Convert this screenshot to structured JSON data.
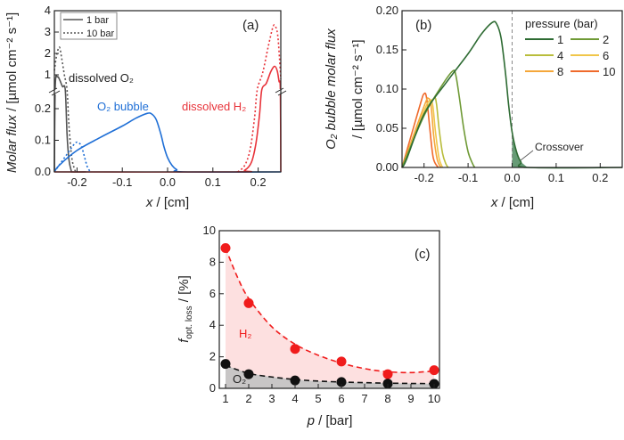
{
  "chart_data": [
    {
      "type": "line",
      "panel_label": "(a)",
      "xlabel": {
        "italic": "x",
        "rest": " / [cm]"
      },
      "ylabel": {
        "italic": "Molar flux",
        "rest": " / [µmol cm⁻² s⁻¹]"
      },
      "xlim": [
        -0.25,
        0.25
      ],
      "xticks": [
        "-0.2",
        "-0.1",
        "0.0",
        "0.1",
        "0.2"
      ],
      "xtick_values": [
        -0.2,
        -0.1,
        0.0,
        0.1,
        0.2
      ],
      "ylim_lower": [
        0,
        0.26
      ],
      "ylim_upper": [
        0.26,
        4
      ],
      "yticks": [
        "0.0",
        "0.1",
        "0.2",
        "1",
        "2",
        "3",
        "4"
      ],
      "ytick_values": [
        0,
        0.1,
        0.2,
        1,
        2,
        3,
        4
      ],
      "axis_break": true,
      "legend": {
        "position": "top-left",
        "entries": [
          {
            "label": "1 bar",
            "style": "solid"
          },
          {
            "label": "10 bar",
            "style": "dotted"
          }
        ]
      },
      "annotations": {
        "dissolved_o2": "dissolved O₂",
        "o2_bubble": "O₂ bubble",
        "dissolved_h2": "dissolved H₂"
      },
      "series": [
        {
          "name": "dissolved O2, 1 bar",
          "color": "#555555",
          "style": "solid",
          "points": [
            [
              -0.25,
              0
            ],
            [
              -0.248,
              0.5
            ],
            [
              -0.243,
              0.9
            ],
            [
              -0.238,
              0.75
            ],
            [
              -0.232,
              0.45
            ],
            [
              -0.226,
              0.26
            ],
            [
              -0.222,
              0.12
            ],
            [
              -0.218,
              0.04
            ],
            [
              -0.213,
              0.005
            ],
            [
              -0.21,
              0
            ],
            [
              -0.18,
              0
            ]
          ]
        },
        {
          "name": "dissolved O2, 10 bar",
          "color": "#555555",
          "style": "dotted",
          "points": [
            [
              -0.25,
              1.2
            ],
            [
              -0.245,
              1.9
            ],
            [
              -0.239,
              2.3
            ],
            [
              -0.234,
              1.8
            ],
            [
              -0.228,
              1.0
            ],
            [
              -0.222,
              0.3
            ],
            [
              -0.218,
              0.15
            ],
            [
              -0.212,
              0.05
            ],
            [
              -0.206,
              0.01
            ],
            [
              -0.202,
              0
            ]
          ]
        },
        {
          "name": "O2 bubble, 1 bar",
          "color": "#1f6fd6",
          "style": "solid",
          "points": [
            [
              -0.25,
              0
            ],
            [
              -0.24,
              0.02
            ],
            [
              -0.2,
              0.068
            ],
            [
              -0.15,
              0.108
            ],
            [
              -0.1,
              0.145
            ],
            [
              -0.07,
              0.17
            ],
            [
              -0.045,
              0.185
            ],
            [
              -0.035,
              0.183
            ],
            [
              -0.025,
              0.165
            ],
            [
              -0.015,
              0.12
            ],
            [
              -0.008,
              0.08
            ],
            [
              0,
              0.045
            ],
            [
              0.01,
              0.02
            ],
            [
              0.02,
              0.007
            ],
            [
              0.035,
              0
            ],
            [
              0.25,
              0
            ]
          ]
        },
        {
          "name": "O2 bubble, 10 bar",
          "color": "#1f6fd6",
          "style": "dotted",
          "points": [
            [
              -0.25,
              0
            ],
            [
              -0.235,
              0.03
            ],
            [
              -0.22,
              0.06
            ],
            [
              -0.205,
              0.09
            ],
            [
              -0.197,
              0.093
            ],
            [
              -0.19,
              0.08
            ],
            [
              -0.183,
              0.045
            ],
            [
              -0.177,
              0.015
            ],
            [
              -0.17,
              0
            ]
          ]
        },
        {
          "name": "dissolved H2, 1 bar",
          "color": "#e8333a",
          "style": "solid",
          "points": [
            [
              -0.25,
              0
            ],
            [
              0.15,
              0
            ],
            [
              0.17,
              0.005
            ],
            [
              0.185,
              0.03
            ],
            [
              0.195,
              0.09
            ],
            [
              0.203,
              0.18
            ],
            [
              0.208,
              0.26
            ],
            [
              0.218,
              0.6
            ],
            [
              0.228,
              1.15
            ],
            [
              0.236,
              1.4
            ],
            [
              0.242,
              1.2
            ],
            [
              0.246,
              0.7
            ],
            [
              0.249,
              0.3
            ],
            [
              0.25,
              0
            ]
          ]
        },
        {
          "name": "dissolved H2, 10 bar",
          "color": "#e8333a",
          "style": "dotted",
          "points": [
            [
              0.155,
              0
            ],
            [
              0.17,
              0.02
            ],
            [
              0.182,
              0.07
            ],
            [
              0.192,
              0.17
            ],
            [
              0.198,
              0.26
            ],
            [
              0.21,
              1.1
            ],
            [
              0.222,
              2.3
            ],
            [
              0.232,
              3.2
            ],
            [
              0.237,
              3.3
            ],
            [
              0.243,
              2.9
            ],
            [
              0.247,
              1.8
            ],
            [
              0.25,
              0.8
            ]
          ]
        }
      ]
    },
    {
      "type": "line",
      "panel_label": "(b)",
      "xlabel": {
        "italic": "x",
        "rest": " / [cm]"
      },
      "ylabel": {
        "line1": "O₂ bubble molar flux",
        "line2": "/ [µmol cm⁻² s⁻¹]"
      },
      "xlim": [
        -0.25,
        0.25
      ],
      "ylim": [
        0,
        0.2
      ],
      "xticks": [
        "-0.2",
        "-0.1",
        "0.0",
        "0.1",
        "0.2"
      ],
      "xtick_values": [
        -0.2,
        -0.1,
        0.0,
        0.1,
        0.2
      ],
      "yticks": [
        "0.00",
        "0.05",
        "0.10",
        "0.15",
        "0.20"
      ],
      "ytick_values": [
        0,
        0.05,
        0.1,
        0.15,
        0.2
      ],
      "legend": {
        "title": "pressure (bar)",
        "position": "top-right"
      },
      "annotation": "Crossover",
      "crossover_fill": "#4c8a5e",
      "series": [
        {
          "name": "1",
          "color": "#2e6b33",
          "points": [
            [
              -0.25,
              0
            ],
            [
              -0.24,
              0.01
            ],
            [
              -0.2,
              0.068
            ],
            [
              -0.15,
              0.108
            ],
            [
              -0.1,
              0.145
            ],
            [
              -0.07,
              0.17
            ],
            [
              -0.045,
              0.185
            ],
            [
              -0.035,
              0.183
            ],
            [
              -0.025,
              0.165
            ],
            [
              -0.015,
              0.12
            ],
            [
              -0.008,
              0.08
            ],
            [
              0,
              0.045
            ],
            [
              0.01,
              0.02
            ],
            [
              0.02,
              0.007
            ],
            [
              0.035,
              0
            ],
            [
              0.25,
              0
            ]
          ]
        },
        {
          "name": "2",
          "color": "#6f9a36",
          "points": [
            [
              -0.25,
              0
            ],
            [
              -0.2,
              0.066
            ],
            [
              -0.16,
              0.104
            ],
            [
              -0.135,
              0.123
            ],
            [
              -0.128,
              0.118
            ],
            [
              -0.12,
              0.09
            ],
            [
              -0.11,
              0.05
            ],
            [
              -0.1,
              0.02
            ],
            [
              -0.09,
              0.005
            ],
            [
              -0.085,
              0
            ]
          ]
        },
        {
          "name": "4",
          "color": "#b9bd3c",
          "points": [
            [
              -0.25,
              0
            ],
            [
              -0.2,
              0.068
            ],
            [
              -0.178,
              0.088
            ],
            [
              -0.172,
              0.082
            ],
            [
              -0.166,
              0.05
            ],
            [
              -0.158,
              0.018
            ],
            [
              -0.15,
              0.004
            ],
            [
              -0.145,
              0
            ]
          ]
        },
        {
          "name": "6",
          "color": "#f0c64a",
          "points": [
            [
              -0.25,
              0
            ],
            [
              -0.2,
              0.072
            ],
            [
              -0.186,
              0.086
            ],
            [
              -0.18,
              0.078
            ],
            [
              -0.174,
              0.045
            ],
            [
              -0.166,
              0.012
            ],
            [
              -0.158,
              0
            ]
          ]
        },
        {
          "name": "8",
          "color": "#f5a73a",
          "points": [
            [
              -0.25,
              0
            ],
            [
              -0.2,
              0.078
            ],
            [
              -0.19,
              0.088
            ],
            [
              -0.184,
              0.078
            ],
            [
              -0.178,
              0.04
            ],
            [
              -0.17,
              0.01
            ],
            [
              -0.162,
              0
            ]
          ]
        },
        {
          "name": "10",
          "color": "#ef6a2c",
          "points": [
            [
              -0.25,
              0
            ],
            [
              -0.21,
              0.078
            ],
            [
              -0.2,
              0.094
            ],
            [
              -0.194,
              0.088
            ],
            [
              -0.187,
              0.05
            ],
            [
              -0.179,
              0.012
            ],
            [
              -0.168,
              0
            ]
          ]
        }
      ]
    },
    {
      "type": "scatter",
      "panel_label": "(c)",
      "xlabel": {
        "italic": "p",
        "rest": " / [bar]"
      },
      "ylabel": {
        "italic": "f",
        "sub": "opt. loss",
        "rest": " / [%]"
      },
      "xlim": [
        0.75,
        10.25
      ],
      "ylim": [
        0,
        10
      ],
      "xticks": [
        "1",
        "2",
        "3",
        "4",
        "5",
        "6",
        "7",
        "8",
        "9",
        "10"
      ],
      "xtick_values": [
        1,
        2,
        3,
        4,
        5,
        6,
        7,
        8,
        9,
        10
      ],
      "yticks": [
        "0",
        "2",
        "4",
        "6",
        "8",
        "10"
      ],
      "ytick_values": [
        0,
        2,
        4,
        6,
        8,
        10
      ],
      "series": [
        {
          "name": "H₂",
          "color": "#f01c1c",
          "fill": "#fde0e0",
          "x": [
            1,
            2,
            4,
            6,
            8,
            10
          ],
          "y": [
            8.9,
            5.4,
            2.5,
            1.7,
            0.9,
            1.15
          ],
          "fit": [
            [
              1,
              8.9
            ],
            [
              1.5,
              7.1
            ],
            [
              2,
              5.7
            ],
            [
              3,
              3.9
            ],
            [
              4,
              2.8
            ],
            [
              5,
              2.1
            ],
            [
              6,
              1.6
            ],
            [
              7,
              1.25
            ],
            [
              8,
              1.05
            ],
            [
              9,
              1.0
            ],
            [
              10,
              1.1
            ]
          ]
        },
        {
          "name": "O₂",
          "color": "#111111",
          "fill": "#c8c6c6",
          "x": [
            1,
            2,
            4,
            6,
            8,
            10
          ],
          "y": [
            1.55,
            0.9,
            0.5,
            0.4,
            0.3,
            0.28
          ],
          "fit": [
            [
              1,
              1.45
            ],
            [
              2,
              0.95
            ],
            [
              3,
              0.72
            ],
            [
              4,
              0.56
            ],
            [
              5,
              0.46
            ],
            [
              6,
              0.4
            ],
            [
              7,
              0.36
            ],
            [
              8,
              0.33
            ],
            [
              9,
              0.31
            ],
            [
              10,
              0.3
            ]
          ]
        }
      ]
    }
  ]
}
